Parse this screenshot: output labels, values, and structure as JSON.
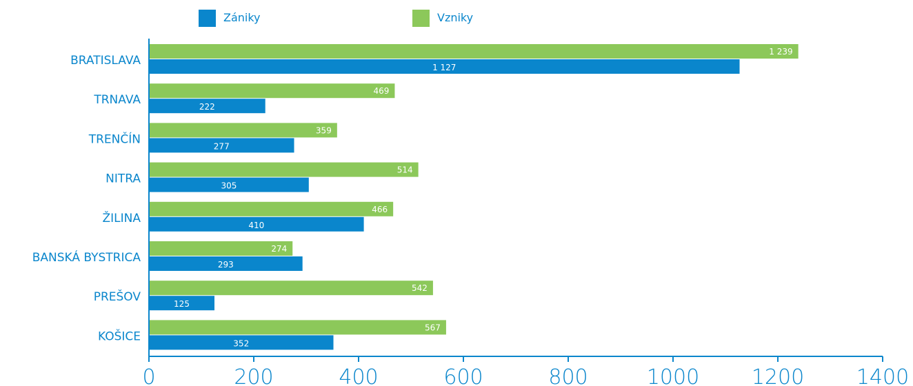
{
  "chart_data": {
    "type": "bar",
    "orientation": "horizontal",
    "categories": [
      "BRATISLAVA",
      "TRNAVA",
      "TRENČÍN",
      "NITRA",
      "ŽILINA",
      "BANSKÁ BYSTRICA",
      "PREŠOV",
      "KOŠICE"
    ],
    "series": [
      {
        "name": "Vzniky",
        "color": "#8cc85a",
        "values": [
          1239,
          469,
          359,
          514,
          466,
          274,
          542,
          567
        ],
        "labels": [
          "1 239",
          "469",
          "359",
          "514",
          "466",
          "274",
          "542",
          "567"
        ]
      },
      {
        "name": "Zániky",
        "color": "#0a86cc",
        "values": [
          1127,
          222,
          277,
          305,
          410,
          293,
          125,
          352
        ],
        "labels": [
          "1 127",
          "222",
          "277",
          "305",
          "410",
          "293",
          "125",
          "352"
        ]
      }
    ],
    "xlim": [
      0,
      1400
    ],
    "xticks": [
      0,
      200,
      400,
      600,
      800,
      1000,
      1200,
      1400
    ],
    "legend": {
      "position": "top",
      "order": [
        "Zániky",
        "Vzniky"
      ]
    },
    "grid": false,
    "axis_color": "#0a86cc"
  }
}
